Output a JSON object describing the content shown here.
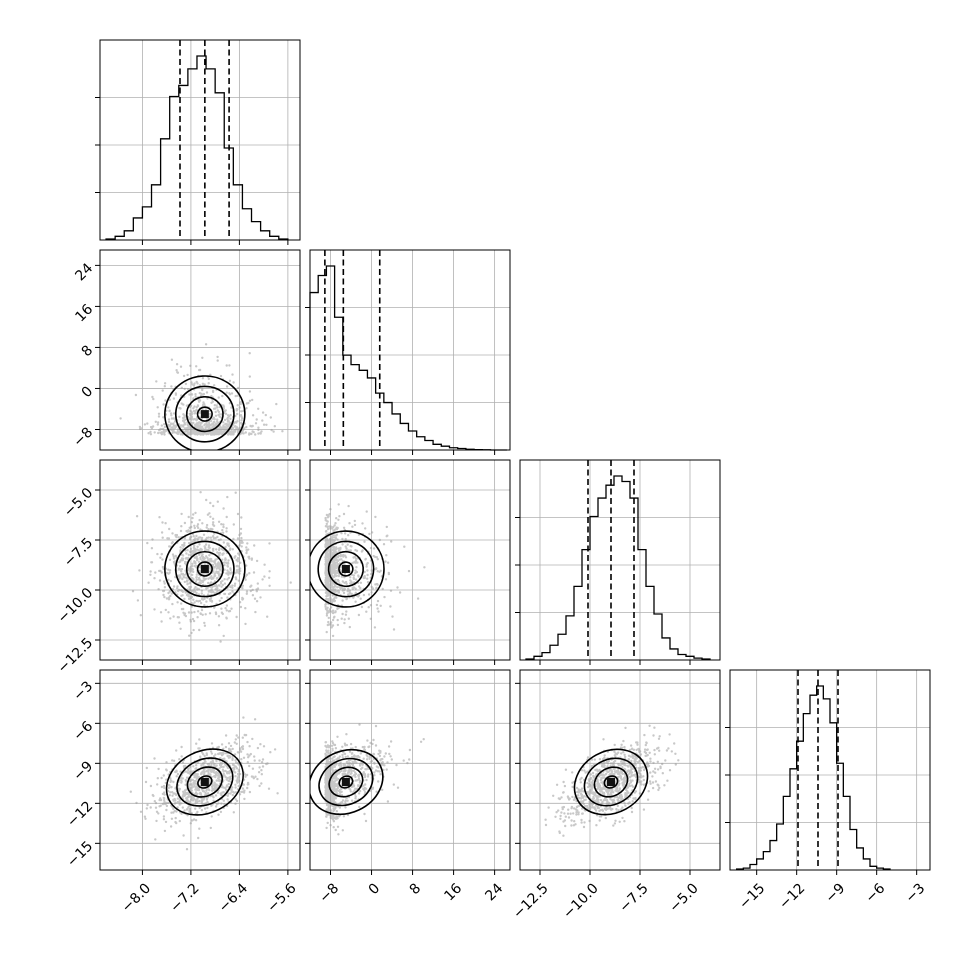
{
  "chart_data": {
    "type": "corner",
    "parameters": 4,
    "axes": [
      {
        "index": 0,
        "range": [
          -8.7,
          -5.4
        ],
        "ticks": [
          -8.0,
          -7.2,
          -6.4,
          -5.6
        ],
        "tick_labels": [
          "−8.0",
          "−7.2",
          "−6.4",
          "−5.6"
        ],
        "median": -6.97,
        "q16": -7.38,
        "q84": -6.57,
        "hist_bins": [
          -8.6,
          -8.45,
          -8.3,
          -8.15,
          -8.0,
          -7.85,
          -7.7,
          -7.55,
          -7.4,
          -7.25,
          -7.1,
          -6.95,
          -6.8,
          -6.65,
          -6.5,
          -6.35,
          -6.2,
          -6.05,
          -5.9,
          -5.75
        ],
        "hist_counts": [
          0.005,
          0.02,
          0.05,
          0.12,
          0.18,
          0.3,
          0.55,
          0.78,
          0.84,
          0.93,
          1.0,
          0.93,
          0.8,
          0.5,
          0.3,
          0.17,
          0.1,
          0.05,
          0.02,
          0.005
        ],
        "center": -6.97,
        "spread": 0.4
      },
      {
        "index": 1,
        "range": [
          -12,
          27
        ],
        "ticks": [
          -8,
          0,
          8,
          16,
          24
        ],
        "tick_labels": [
          "−8",
          "0",
          "8",
          "16",
          "24"
        ],
        "median": -5.5,
        "q16": -9.1,
        "q84": 1.6,
        "hist_bins": [
          -12,
          -10.4,
          -8.8,
          -7.2,
          -5.6,
          -4.0,
          -2.4,
          -0.8,
          0.8,
          2.4,
          4.0,
          5.6,
          7.2,
          8.8,
          10.4,
          12.0,
          13.6,
          15.2,
          16.8,
          18.4,
          20.0,
          21.6,
          23.2,
          24.8
        ],
        "hist_counts": [
          0.83,
          0.92,
          0.97,
          0.7,
          0.5,
          0.45,
          0.42,
          0.38,
          0.3,
          0.25,
          0.19,
          0.14,
          0.1,
          0.07,
          0.05,
          0.03,
          0.02,
          0.012,
          0.008,
          0.004,
          0.002,
          0.001,
          0.0,
          0.0
        ],
        "center": -5.0,
        "spread": 5.5
      },
      {
        "index": 2,
        "range": [
          -13.5,
          -3.5
        ],
        "ticks": [
          -12.5,
          -10.0,
          -7.5,
          -5.0
        ],
        "tick_labels": [
          "−12.5",
          "−10.0",
          "−7.5",
          "−5.0"
        ],
        "median": -8.95,
        "q16": -10.1,
        "q84": -7.8,
        "hist_bins": [
          -13.2,
          -12.8,
          -12.4,
          -12.0,
          -11.6,
          -11.2,
          -10.8,
          -10.4,
          -10.0,
          -9.6,
          -9.2,
          -8.8,
          -8.4,
          -8.0,
          -7.6,
          -7.2,
          -6.8,
          -6.4,
          -6.0,
          -5.6,
          -5.2,
          -4.8,
          -4.4
        ],
        "hist_counts": [
          0.005,
          0.02,
          0.04,
          0.08,
          0.14,
          0.24,
          0.4,
          0.6,
          0.78,
          0.88,
          0.95,
          1.0,
          0.97,
          0.88,
          0.6,
          0.4,
          0.25,
          0.12,
          0.06,
          0.03,
          0.02,
          0.01,
          0.005
        ],
        "center": -8.95,
        "spread": 1.15
      },
      {
        "index": 3,
        "range": [
          -17,
          -2
        ],
        "ticks": [
          -15,
          -12,
          -9,
          -6,
          -3
        ],
        "tick_labels": [
          "−15",
          "−12",
          "−9",
          "−6",
          "−3"
        ],
        "median": -10.4,
        "q16": -11.9,
        "q84": -8.9,
        "hist_bins": [
          -16.5,
          -16.0,
          -15.5,
          -15.0,
          -14.5,
          -14.0,
          -13.5,
          -13.0,
          -12.5,
          -12.0,
          -11.5,
          -11.0,
          -10.5,
          -10.0,
          -9.5,
          -9.0,
          -8.5,
          -8.0,
          -7.5,
          -7.0,
          -6.5,
          -6.0,
          -5.5
        ],
        "hist_counts": [
          0.005,
          0.01,
          0.03,
          0.06,
          0.1,
          0.16,
          0.25,
          0.4,
          0.55,
          0.7,
          0.85,
          0.95,
          1.0,
          0.93,
          0.8,
          0.58,
          0.4,
          0.22,
          0.12,
          0.06,
          0.02,
          0.01,
          0.005
        ],
        "center": -10.4,
        "spread": 1.4
      }
    ],
    "correlations": {
      "1-0": 0.05,
      "2-0": 0.0,
      "2-1": -0.1,
      "3-0": 0.5,
      "3-1": 0.45,
      "3-2": 0.55
    },
    "contour_levels": [
      0.5,
      1.0,
      1.5,
      2.0
    ],
    "quantiles": [
      0.16,
      0.5,
      0.84
    ],
    "grid": true,
    "title": "",
    "legend": "none"
  }
}
